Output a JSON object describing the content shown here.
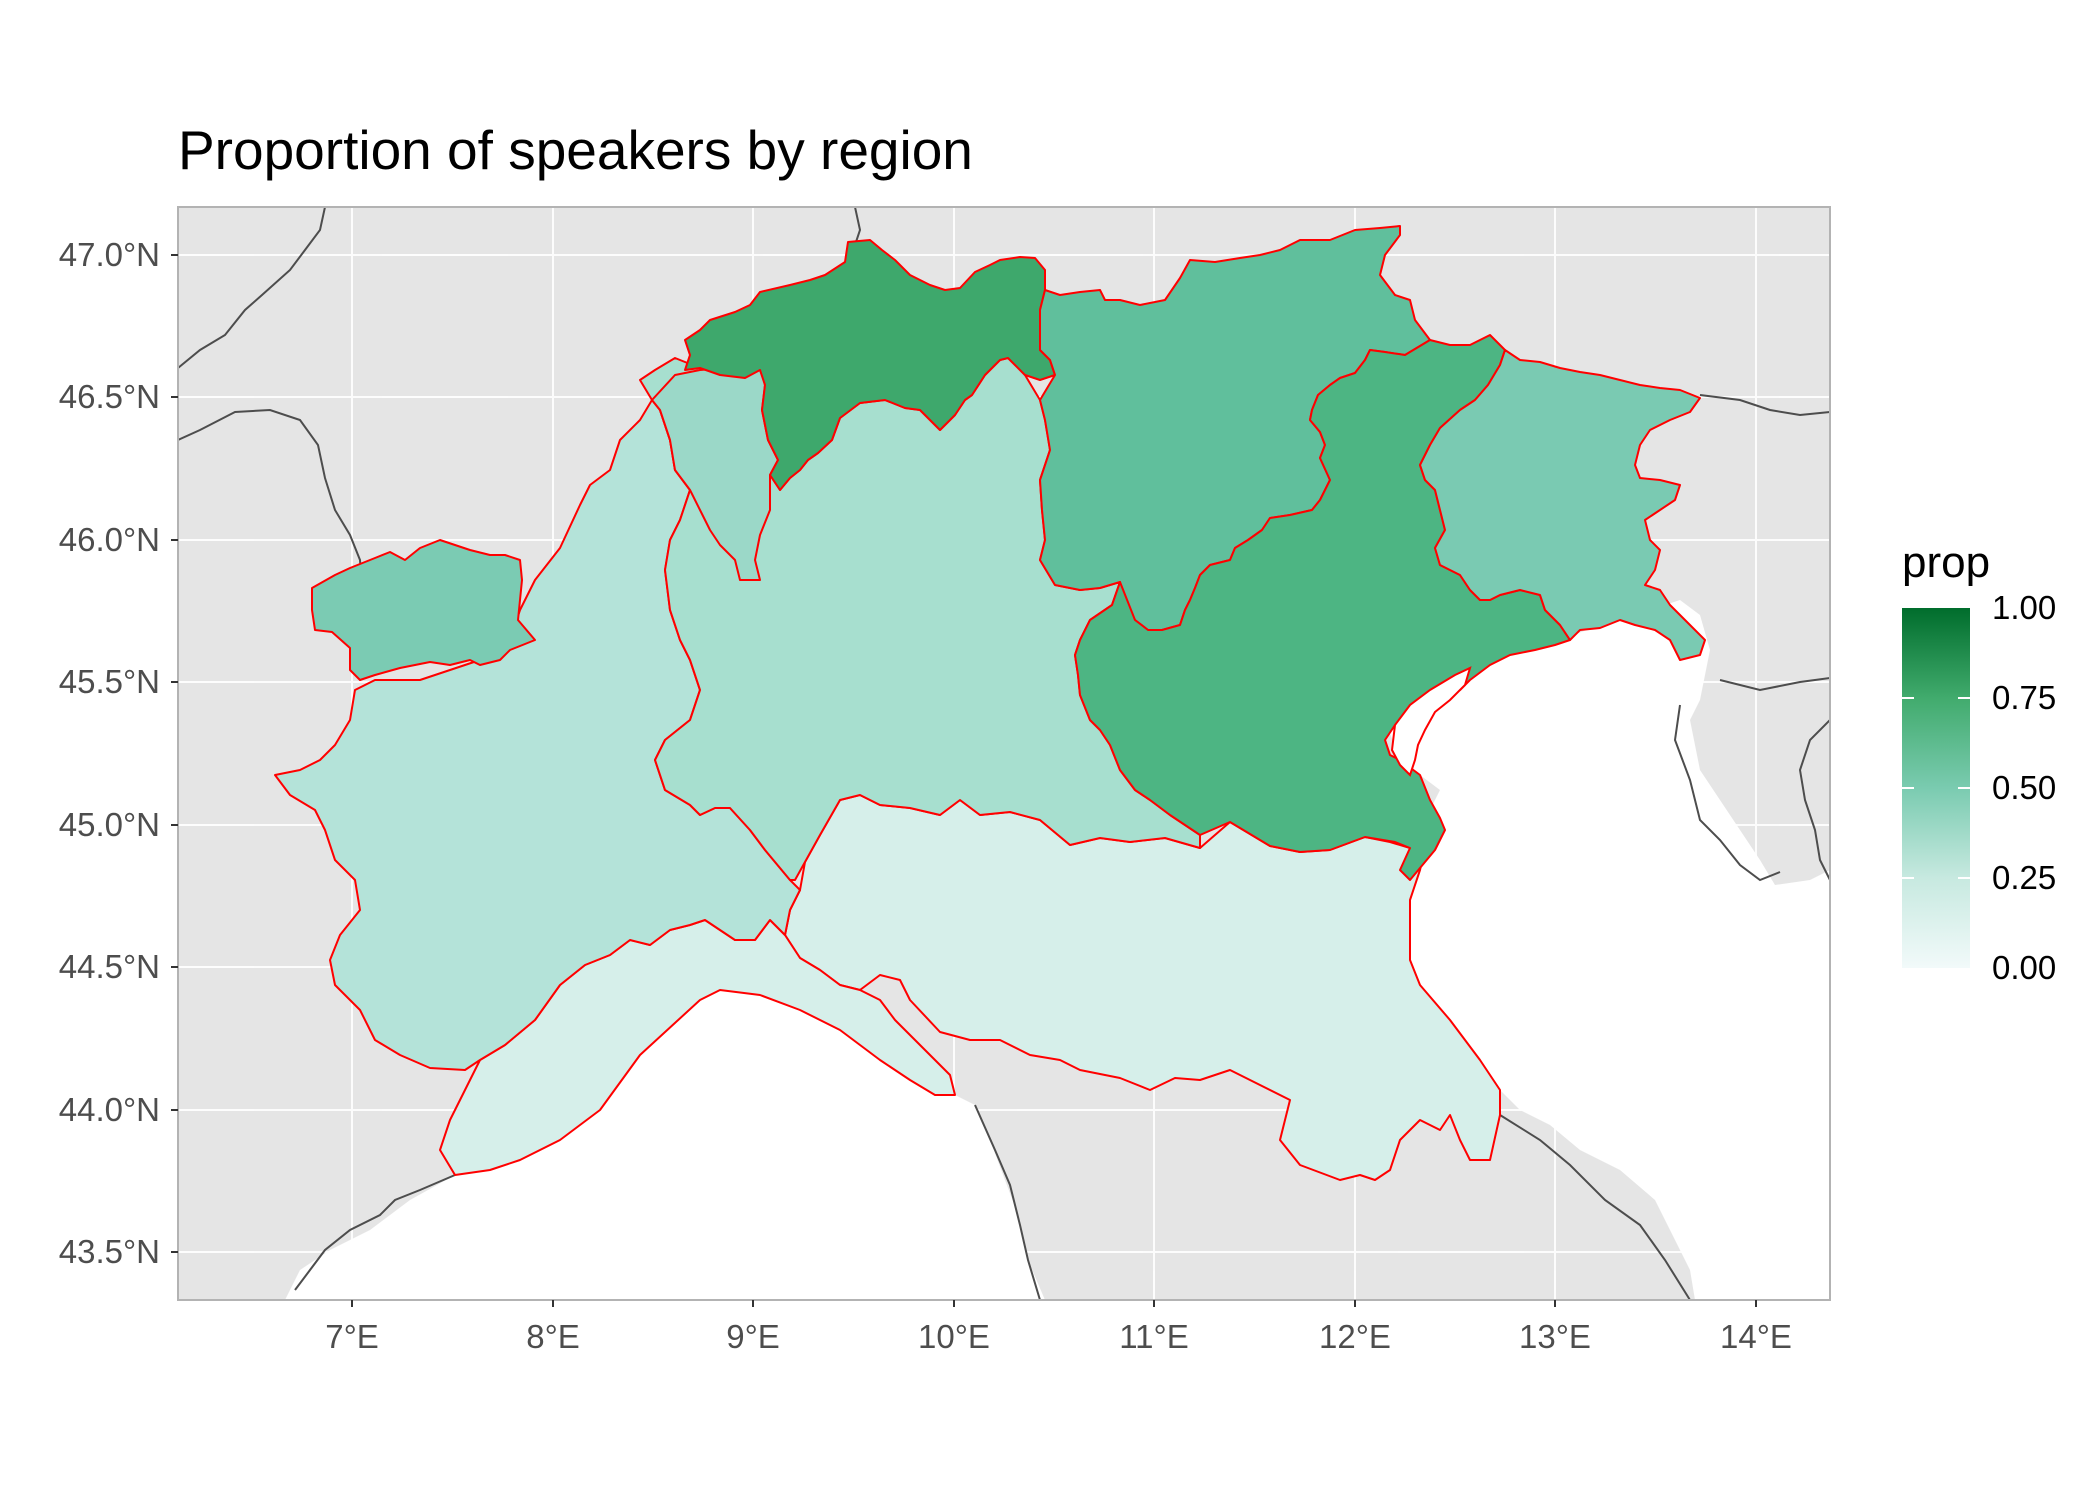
{
  "title": "Proportion of speakers by region",
  "axes": {
    "y_ticks": [
      "47.0°N",
      "46.5°N",
      "46.0°N",
      "45.5°N",
      "45.0°N",
      "44.5°N",
      "44.0°N",
      "43.5°N"
    ],
    "x_ticks": [
      "7°E",
      "8°E",
      "9°E",
      "10°E",
      "11°E",
      "12°E",
      "13°E",
      "14°E"
    ]
  },
  "legend": {
    "title": "prop",
    "labels": [
      "1.00",
      "0.75",
      "0.50",
      "0.25",
      "0.00"
    ],
    "gradient": [
      "#f2fafa",
      "#c7e9e0",
      "#7acbb0",
      "#41ab6d",
      "#006d2c"
    ]
  },
  "colors": {
    "panel_bg": "#e5e5e5",
    "sea": "#ffffff",
    "region_border": "#ff0000",
    "country_border": "#4d4d4d"
  },
  "chart_data": {
    "type": "choropleth",
    "title": "Proportion of speakers by region",
    "fill_variable": "prop",
    "fill_range": [
      0,
      1
    ],
    "xlim": [
      6.1,
      14.35
    ],
    "ylim": [
      43.33,
      47.17
    ],
    "regions": [
      {
        "color": "#3ea86c",
        "prop": 0.78
      },
      {
        "color": "#60bf9c",
        "prop": 0.55
      },
      {
        "color": "#4db583",
        "prop": 0.68
      },
      {
        "color": "#7bcbb3",
        "prop": 0.45
      },
      {
        "color": "#7acab2",
        "prop": 0.45
      },
      {
        "color": "#9bd8c8",
        "prop": 0.35
      },
      {
        "color": "#a7dfcf",
        "prop": 0.3
      },
      {
        "color": "#b4e3d9",
        "prop": 0.25
      },
      {
        "color": "#d6efea",
        "prop": 0.12
      }
    ]
  }
}
